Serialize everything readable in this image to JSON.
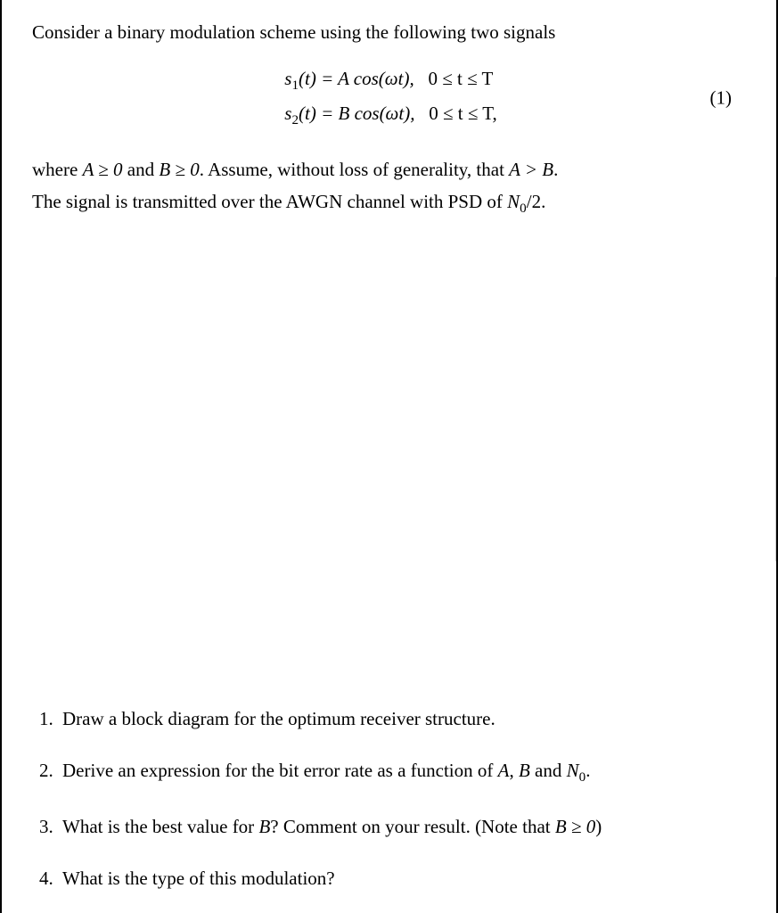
{
  "intro": "Consider a binary modulation scheme using the following two signals",
  "equations": {
    "line1_lhs": "s",
    "line1_sub": "1",
    "line1_arg": "(t) = A cos(ωt),",
    "line1_cond": "0 ≤ t ≤ T",
    "line2_lhs": "s",
    "line2_sub": "2",
    "line2_arg": "(t) = B cos(ωt),",
    "line2_cond": "0 ≤ t ≤ T,",
    "eqnum": "(1)"
  },
  "para2_before": "where ",
  "para2_a": "A ≥ 0",
  "para2_mid1": " and ",
  "para2_b": "B ≥ 0",
  "para2_mid2": ". Assume, without loss of generality, that ",
  "para2_ab": "A > B",
  "para2_end": ".",
  "para3_before": "The signal is transmitted over the AWGN channel with PSD of ",
  "para3_n0": "N",
  "para3_n0_sub": "0",
  "para3_after": "/2.",
  "questions": [
    {
      "n": "1.",
      "text": "Draw a block diagram for the optimum receiver structure."
    },
    {
      "n": "2.",
      "text_before": "Derive an expression for the bit error rate as a function of ",
      "a": "A",
      "mid1": ", ",
      "b": "B",
      "mid2": " and ",
      "n0": "N",
      "n0_sub": "0",
      "after": "."
    },
    {
      "n": "3.",
      "text_before": "What is the best value for ",
      "b": "B",
      "mid": "? Comment on your result. (Note that ",
      "bcond": "B ≥ 0",
      "after": ")"
    },
    {
      "n": "4.",
      "text": "What is the type of this modulation?"
    }
  ]
}
